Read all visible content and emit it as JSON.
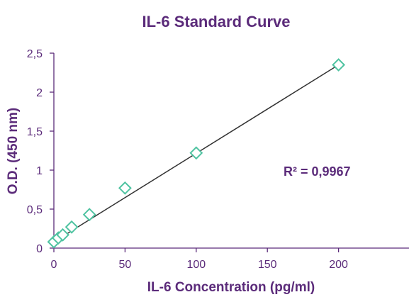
{
  "colors": {
    "text": "#5b2b7a",
    "axis": "#5b2b7a",
    "marker": "#4fc3a1",
    "trendline": "#333333"
  },
  "chart_data": {
    "type": "scatter",
    "title": "IL-6 Standard Curve",
    "xlabel": "IL-6 Concentration (pg/ml)",
    "ylabel": "O.D. (450 nm)",
    "xlim": [
      0,
      250
    ],
    "ylim": [
      0,
      2.5
    ],
    "x_ticks": [
      0,
      50,
      100,
      150,
      200,
      250
    ],
    "x_tick_labels": [
      "0",
      "50",
      "100",
      "150",
      "200",
      ""
    ],
    "y_ticks": [
      0,
      0.5,
      1,
      1.5,
      2,
      2.5
    ],
    "y_tick_labels": [
      "0",
      "0,5",
      "1",
      "1,5",
      "2",
      "2,5"
    ],
    "grid": false,
    "marker": "diamond-open",
    "series": [
      {
        "x": [
          0,
          3.125,
          6.25,
          12.5,
          25,
          50,
          100,
          200
        ],
        "y": [
          0.08,
          0.13,
          0.17,
          0.27,
          0.43,
          0.77,
          1.22,
          2.35
        ]
      }
    ],
    "trendline": {
      "type": "linear",
      "x": [
        0,
        200
      ],
      "y": [
        0.08,
        2.35
      ]
    },
    "annotations": [
      {
        "text": "R² = 0,9967"
      }
    ]
  }
}
